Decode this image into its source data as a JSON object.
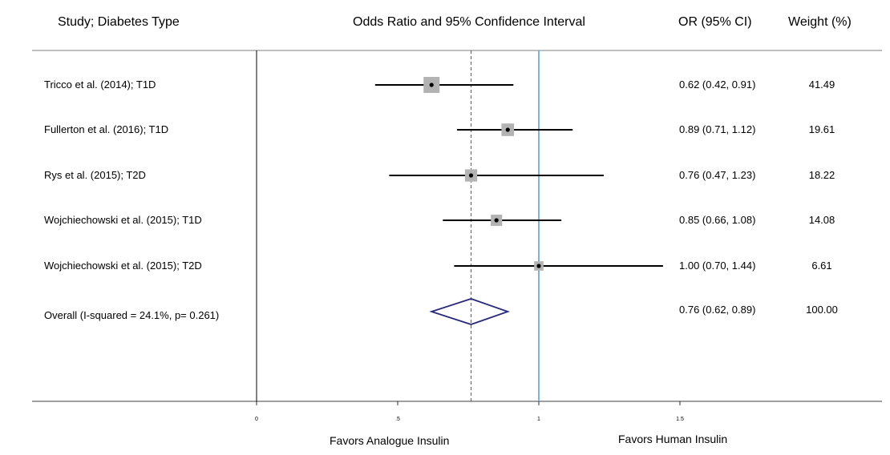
{
  "headers": {
    "study": "Study; Diabetes Type",
    "plot": "Odds Ratio and 95% Confidence Interval",
    "or_ci": "OR (95% CI)",
    "weight": "Weight (%)"
  },
  "footer": {
    "left": "Favors Analogue Insulin",
    "right": "Favors Human Insulin"
  },
  "colors": {
    "ci_line": "#000000",
    "box": "#b3b3b3",
    "diamond": "#2b2a7a",
    "null_line": "#7fb3dc",
    "overall_line": "#a23a47"
  },
  "chart_data": {
    "type": "forest",
    "x_ticks": [
      {
        "value": 0,
        "label": "0"
      },
      {
        "value": 0.5,
        "label": ".5"
      },
      {
        "value": 1,
        "label": "1"
      },
      {
        "value": 1.5,
        "label": "1.5"
      }
    ],
    "null_value": 1,
    "overall_value": 0.76,
    "studies": [
      {
        "label": "Tricco et al. (2014); T1D",
        "or": 0.62,
        "lo": 0.42,
        "hi": 0.91,
        "ci_text": "0.62 (0.42, 0.91)",
        "weight": "41.49",
        "w": 41.49
      },
      {
        "label": "Fullerton et al. (2016); T1D",
        "or": 0.89,
        "lo": 0.71,
        "hi": 1.12,
        "ci_text": "0.89 (0.71, 1.12)",
        "weight": "19.61",
        "w": 19.61
      },
      {
        "label": "Rys et al. (2015); T2D",
        "or": 0.76,
        "lo": 0.47,
        "hi": 1.23,
        "ci_text": "0.76 (0.47, 1.23)",
        "weight": "18.22",
        "w": 18.22
      },
      {
        "label": "Wojchiechowski et al. (2015); T1D",
        "or": 0.85,
        "lo": 0.66,
        "hi": 1.08,
        "ci_text": "0.85 (0.66, 1.08)",
        "weight": "14.08",
        "w": 14.08
      },
      {
        "label": "Wojchiechowski et al. (2015); T2D",
        "or": 1.0,
        "lo": 0.7,
        "hi": 1.44,
        "ci_text": "1.00 (0.70, 1.44)",
        "weight": "6.61",
        "w": 6.61
      }
    ],
    "overall": {
      "label": "Overall (I-squared = 24.1%, p= 0.261)",
      "or": 0.76,
      "lo": 0.62,
      "hi": 0.89,
      "ci_text": "0.76 (0.62, 0.89)",
      "weight": "100.00"
    }
  }
}
